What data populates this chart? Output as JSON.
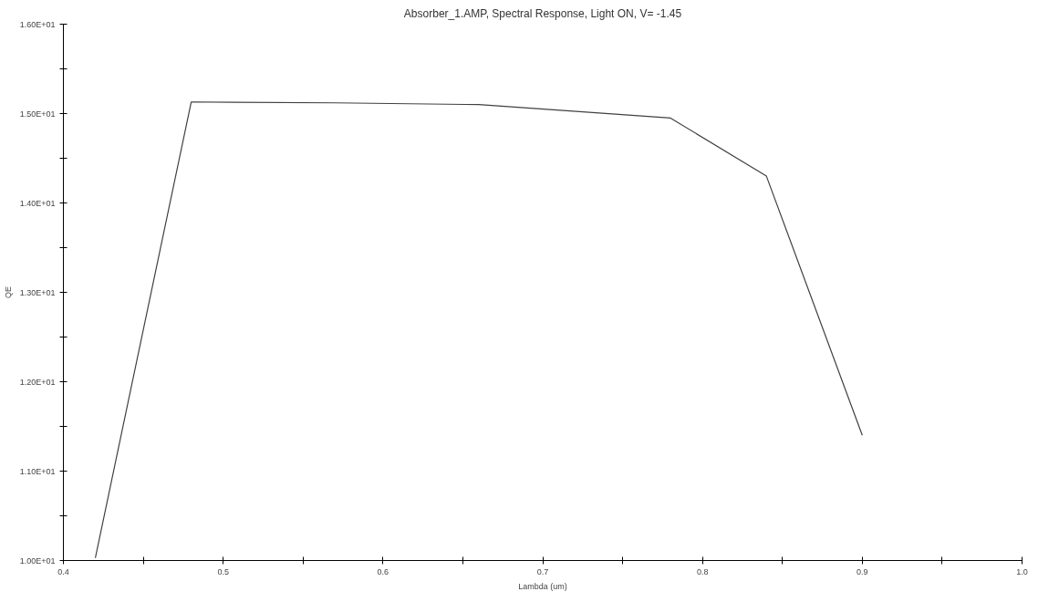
{
  "chart_data": {
    "type": "line",
    "title": "Absorber_1.AMP, Spectral Response, Light ON, V= -1.45",
    "xlabel": "Lambda (um)",
    "ylabel": "QE",
    "x": [
      0.42,
      0.48,
      0.57,
      0.66,
      0.78,
      0.84,
      0.9
    ],
    "series": [
      {
        "color": "#404040",
        "values": [
          10.03,
          15.13,
          15.12,
          15.1,
          14.95,
          14.3,
          11.4
        ]
      }
    ],
    "xlim": [
      0.4,
      1.0
    ],
    "xticks": [
      0.4,
      {
        "value": 0.45,
        "label": null
      },
      0.5,
      {
        "value": 0.55,
        "label": null
      },
      0.6,
      {
        "value": 0.65,
        "label": null
      },
      0.7,
      {
        "value": 0.75,
        "label": null
      },
      0.8,
      {
        "value": 0.85,
        "label": null
      },
      0.9,
      {
        "value": 0.95,
        "label": null
      },
      {
        "value": 1.0,
        "label": "1.0"
      }
    ],
    "ylim": [
      10,
      16
    ],
    "yticks": [
      {
        "value": 10,
        "label": "1.00E+01"
      },
      {
        "value": 10.5,
        "label": null
      },
      {
        "value": 11,
        "label": "1.10E+01"
      },
      {
        "value": 11.5,
        "label": null
      },
      {
        "value": 12,
        "label": "1.20E+01"
      },
      {
        "value": 12.5,
        "label": null
      },
      {
        "value": 13,
        "label": "1.30E+01"
      },
      {
        "value": 13.5,
        "label": null
      },
      {
        "value": 14,
        "label": "1.40E+01"
      },
      {
        "value": 14.5,
        "label": null
      },
      {
        "value": 15,
        "label": "1.50E+01"
      },
      {
        "value": 15.5,
        "label": null
      },
      {
        "value": 16,
        "label": "1.60E+01"
      }
    ],
    "grid": false,
    "marker": "none",
    "line_style": "solid"
  }
}
